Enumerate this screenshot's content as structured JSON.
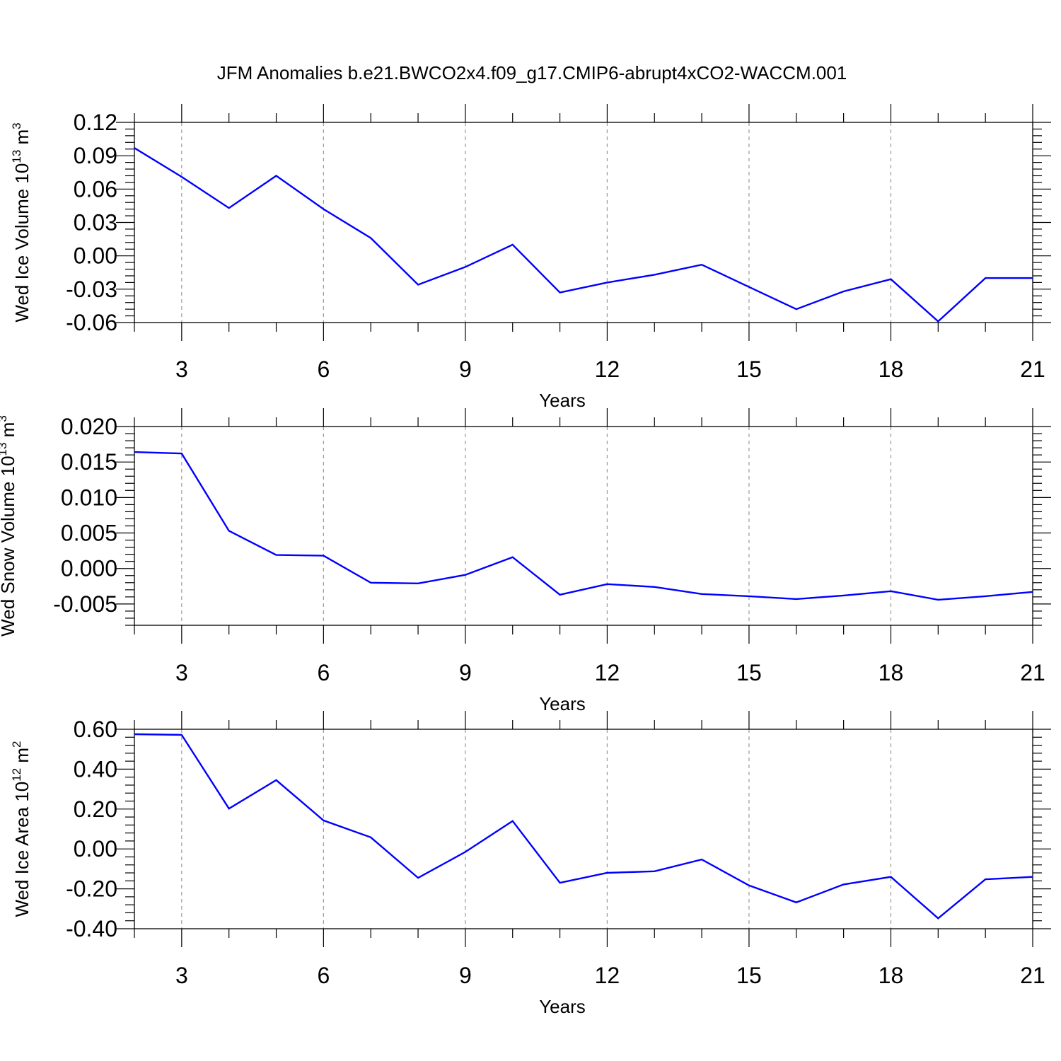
{
  "title": "JFM Anomalies b.e21.BWCO2x4.f09_g17.CMIP6-abrupt4xCO2-WACCM.001",
  "colors": {
    "line": "#0000ff",
    "frame": "#000000",
    "grid": "#999999"
  },
  "chart_data": [
    {
      "type": "line",
      "ylabel": "Wed Ice Volume 10",
      "ylabel_exp": "13",
      "ylabel_unit": " m",
      "ylabel_unit_exp": "3",
      "xlabel": "Years",
      "xlim": [
        2,
        21
      ],
      "ylim": [
        -0.06,
        0.12
      ],
      "xticks": [
        3,
        6,
        9,
        12,
        15,
        18,
        21
      ],
      "yticks": [
        -0.06,
        -0.03,
        0.0,
        0.03,
        0.06,
        0.09,
        0.12
      ],
      "ytick_labels": [
        "-0.06",
        "-0.03",
        "0.00",
        "0.03",
        "0.06",
        "0.09",
        "0.12"
      ],
      "grid": "vertical dashed at major x ticks",
      "x": [
        2,
        3,
        4,
        5,
        6,
        7,
        8,
        9,
        10,
        11,
        12,
        13,
        14,
        15,
        16,
        17,
        18,
        19,
        20,
        21
      ],
      "series": [
        {
          "values": [
            0.097,
            0.071,
            0.043,
            0.072,
            0.042,
            0.016,
            -0.026,
            -0.01,
            0.01,
            -0.033,
            -0.024,
            -0.017,
            -0.008,
            -0.028,
            -0.048,
            -0.032,
            -0.021,
            -0.059,
            -0.02,
            -0.02
          ]
        }
      ]
    },
    {
      "type": "line",
      "ylabel": "Wed Snow Volume 10",
      "ylabel_exp": "13",
      "ylabel_unit": " m",
      "ylabel_unit_exp": "3",
      "xlabel": "Years",
      "xlim": [
        2,
        21
      ],
      "ylim": [
        -0.008,
        0.02
      ],
      "xticks": [
        3,
        6,
        9,
        12,
        15,
        18,
        21
      ],
      "yticks": [
        -0.005,
        0.0,
        0.005,
        0.01,
        0.015,
        0.02
      ],
      "ytick_labels": [
        "-0.005",
        "0.000",
        "0.005",
        "0.010",
        "0.015",
        "0.020"
      ],
      "grid": "vertical dashed at major x ticks",
      "x": [
        2,
        3,
        4,
        5,
        6,
        7,
        8,
        9,
        10,
        11,
        12,
        13,
        14,
        15,
        16,
        17,
        18,
        19,
        20,
        21
      ],
      "series": [
        {
          "values": [
            0.0164,
            0.0162,
            0.0053,
            0.0019,
            0.0018,
            -0.002,
            -0.0021,
            -0.0009,
            0.0016,
            -0.0037,
            -0.0022,
            -0.0026,
            -0.0036,
            -0.0039,
            -0.0043,
            -0.0038,
            -0.0032,
            -0.0044,
            -0.0039,
            -0.0033
          ]
        }
      ]
    },
    {
      "type": "line",
      "ylabel": "Wed Ice Area 10",
      "ylabel_exp": "12",
      "ylabel_unit": " m",
      "ylabel_unit_exp": "2",
      "xlabel": "Years",
      "xlim": [
        2,
        21
      ],
      "ylim": [
        -0.4,
        0.6
      ],
      "xticks": [
        3,
        6,
        9,
        12,
        15,
        18,
        21
      ],
      "yticks": [
        -0.4,
        -0.2,
        0.0,
        0.2,
        0.4,
        0.6
      ],
      "ytick_labels": [
        "-0.40",
        "-0.20",
        "0.00",
        "0.20",
        "0.40",
        "0.60"
      ],
      "grid": "vertical dashed at major x ticks",
      "x": [
        2,
        3,
        4,
        5,
        6,
        7,
        8,
        9,
        10,
        11,
        12,
        13,
        14,
        15,
        16,
        17,
        18,
        19,
        20,
        21
      ],
      "series": [
        {
          "values": [
            0.575,
            0.572,
            0.202,
            0.345,
            0.143,
            0.058,
            -0.145,
            -0.015,
            0.14,
            -0.17,
            -0.12,
            -0.112,
            -0.053,
            -0.183,
            -0.268,
            -0.178,
            -0.14,
            -0.348,
            -0.152,
            -0.14
          ]
        }
      ]
    }
  ]
}
